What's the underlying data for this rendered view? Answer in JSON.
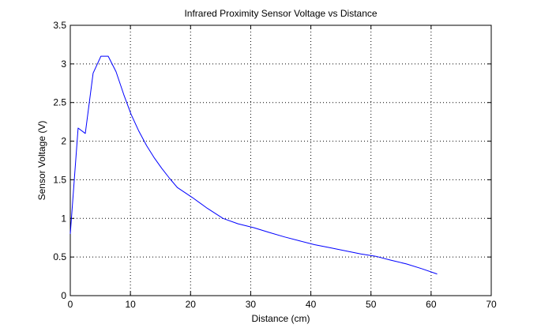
{
  "chart_data": {
    "type": "line",
    "title": "Infrared Proximity Sensor Voltage vs Distance",
    "xlabel": "Distance (cm)",
    "ylabel": "Sensor Voltage (V)",
    "xlim": [
      0,
      70
    ],
    "ylim": [
      0,
      3.5
    ],
    "xticks": [
      0,
      10,
      20,
      30,
      40,
      50,
      60,
      70
    ],
    "yticks": [
      0,
      0.5,
      1,
      1.5,
      2,
      2.5,
      3,
      3.5
    ],
    "xtick_labels": [
      "0",
      "10",
      "20",
      "30",
      "40",
      "50",
      "60",
      "70"
    ],
    "ytick_labels": [
      "0",
      "0.5",
      "1",
      "1.5",
      "2",
      "2.5",
      "3",
      "3.5"
    ],
    "grid": true,
    "grid_style": "dotted",
    "series": [
      {
        "color": "#0000ff",
        "x": [
          0,
          1.3,
          2.5,
          3.8,
          5.1,
          6.3,
          7.6,
          8.9,
          10.1,
          11.4,
          12.7,
          14.0,
          15.2,
          16.5,
          17.8,
          20.3,
          22.8,
          25.4,
          27.9,
          30.5,
          33.0,
          35.6,
          38.1,
          40.6,
          43.2,
          45.7,
          48.3,
          50.8,
          53.3,
          55.9,
          58.4,
          61.0
        ],
        "y": [
          0.8,
          2.17,
          2.1,
          2.88,
          3.1,
          3.1,
          2.9,
          2.6,
          2.35,
          2.13,
          1.94,
          1.78,
          1.65,
          1.52,
          1.4,
          1.27,
          1.13,
          1.0,
          0.93,
          0.88,
          0.82,
          0.76,
          0.71,
          0.66,
          0.62,
          0.58,
          0.54,
          0.51,
          0.46,
          0.41,
          0.35,
          0.28
        ]
      }
    ]
  }
}
